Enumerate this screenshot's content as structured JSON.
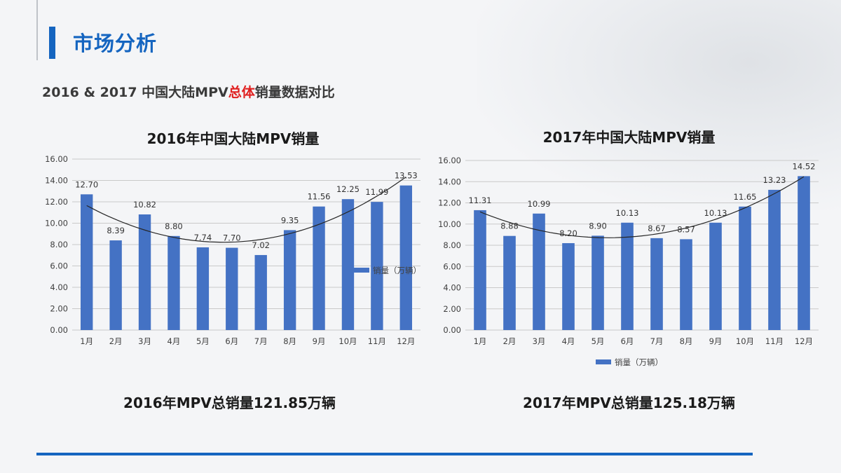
{
  "page": {
    "title": "市场分析",
    "subtitle_pre": "2016 & 2017 中国大陆MPV",
    "subtitle_hl": "总体",
    "subtitle_post": "销量数据对比"
  },
  "colors": {
    "accent": "#1565c0",
    "bar": "#4472c4",
    "highlight": "#e02020"
  },
  "chart_data": [
    {
      "type": "bar",
      "title": "2016年中国大陆MPV销量",
      "categories": [
        "1月",
        "2月",
        "3月",
        "4月",
        "5月",
        "6月",
        "7月",
        "8月",
        "9月",
        "10月",
        "11月",
        "12月"
      ],
      "series": [
        {
          "name": "销量（万辆）",
          "values": [
            12.7,
            8.39,
            10.82,
            8.8,
            7.74,
            7.7,
            7.02,
            9.35,
            11.56,
            12.25,
            11.99,
            13.53
          ]
        }
      ],
      "ylim": [
        0,
        16
      ],
      "yticks": [
        "0.00",
        "2.00",
        "4.00",
        "6.00",
        "8.00",
        "10.00",
        "12.00",
        "14.00",
        "16.00"
      ],
      "data_labels": [
        "12.70",
        "8.39",
        "10.82",
        "8.80",
        "7.74",
        "7.70",
        "7.02",
        "9.35",
        "11.56",
        "12.25",
        "11.99",
        "13.53"
      ],
      "trendline": "polynomial",
      "grid": true,
      "legend": "right",
      "total_text": "2016年MPV总销量121.85万辆"
    },
    {
      "type": "bar",
      "title": "2017年中国大陆MPV销量",
      "categories": [
        "1月",
        "2月",
        "3月",
        "4月",
        "5月",
        "6月",
        "7月",
        "8月",
        "9月",
        "10月",
        "11月",
        "12月"
      ],
      "series": [
        {
          "name": "销量（万辆）",
          "values": [
            11.31,
            8.88,
            10.99,
            8.2,
            8.9,
            10.13,
            8.67,
            8.57,
            10.13,
            11.65,
            13.23,
            14.52
          ]
        }
      ],
      "ylim": [
        0,
        16
      ],
      "yticks": [
        "0.00",
        "2.00",
        "4.00",
        "6.00",
        "8.00",
        "10.00",
        "12.00",
        "14.00",
        "16.00"
      ],
      "data_labels": [
        "11.31",
        "8.88",
        "10.99",
        "8.20",
        "8.90",
        "10.13",
        "8.67",
        "8.57",
        "10.13",
        "11.65",
        "13.23",
        "14.52"
      ],
      "trendline": "polynomial",
      "grid": true,
      "legend": "bottom",
      "total_text": "2017年MPV总销量125.18万辆"
    }
  ]
}
